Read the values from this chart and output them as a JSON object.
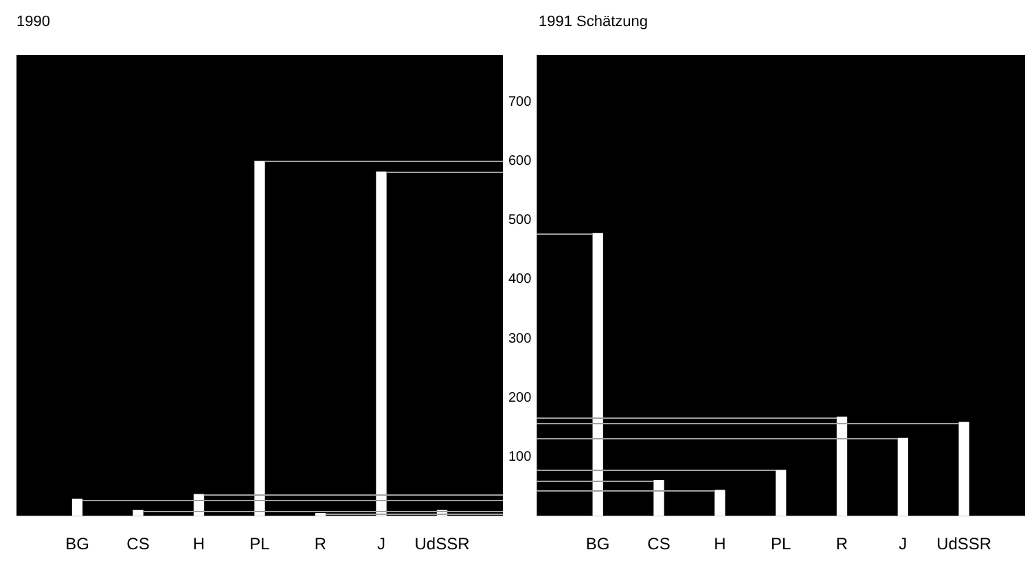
{
  "chart_data": [
    {
      "type": "bar",
      "title": "1990",
      "categories": [
        "BG",
        "CS",
        "H",
        "PL",
        "R",
        "J",
        "UdSSR"
      ],
      "values": [
        28,
        9,
        36,
        600,
        4,
        582,
        9
      ],
      "color": "#ffffff",
      "ylim": [
        0,
        780
      ],
      "tick_labels": "x",
      "grid": false,
      "legend": false,
      "ref_lines": [
        {
          "axis": "y",
          "value": 28,
          "color": "#a0a0a0"
        },
        {
          "axis": "y",
          "value": 9,
          "color": "#a0a0a0"
        },
        {
          "axis": "y",
          "value": 36,
          "color": "#a0a0a0"
        },
        {
          "axis": "y",
          "value": 600,
          "color": "#a0a0a0"
        },
        {
          "axis": "y",
          "value": 4,
          "color": "#a0a0a0"
        },
        {
          "axis": "y",
          "value": 582,
          "color": "#a0a0a0"
        }
      ]
    },
    {
      "type": "bar",
      "title": "1991 Schätzung",
      "categories": [
        "BG",
        "CS",
        "H",
        "PL",
        "R",
        "J",
        "UdSSR"
      ],
      "values": [
        478,
        60,
        43,
        77,
        167,
        131,
        158
      ],
      "color": "#ffffff",
      "ylim": [
        0,
        780
      ],
      "yticks": [
        100,
        200,
        300,
        400,
        500,
        600,
        700
      ],
      "grid": false,
      "legend": false,
      "ref_lines": [
        {
          "axis": "y",
          "value": 478,
          "color": "#a0a0a0"
        },
        {
          "axis": "y",
          "value": 60,
          "color": "#a0a0a0"
        },
        {
          "axis": "y",
          "value": 43,
          "color": "#a0a0a0"
        },
        {
          "axis": "y",
          "value": 77,
          "color": "#a0a0a0"
        },
        {
          "axis": "y",
          "value": 167,
          "color": "#a0a0a0"
        },
        {
          "axis": "y",
          "value": 131,
          "color": "#a0a0a0"
        },
        {
          "axis": "y",
          "value": 158,
          "color": "#a0a0a0"
        }
      ]
    }
  ]
}
